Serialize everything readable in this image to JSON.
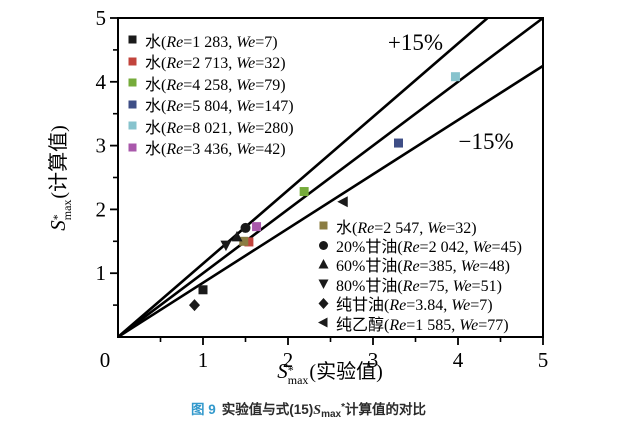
{
  "caption": {
    "fig_label": "图 9",
    "fig_label_color": "#3399cc",
    "pre": "实验值与式(15)",
    "sym": "S",
    "sym_sub": "max",
    "sym_sup": "*",
    "post": "计算值的对比"
  },
  "chart_data": {
    "type": "scatter",
    "title": "",
    "xlabel": {
      "sym": "S",
      "sup": "*",
      "sub": "max",
      "text": "(实验值)"
    },
    "ylabel": {
      "sym": "S",
      "sup": "*",
      "sub": "max",
      "text": "(计算值)"
    },
    "xlim": [
      0,
      5
    ],
    "ylim": [
      0,
      5
    ],
    "x_major_ticks": [
      0,
      1,
      2,
      3,
      4,
      5
    ],
    "y_major_ticks": [
      0,
      1,
      2,
      3,
      4,
      5
    ],
    "minor_tick_step": 0.5,
    "grid": false,
    "axis_color": "#000000",
    "reference_lines": [
      {
        "slope": 1.15,
        "label": "+15%",
        "label_x": 3.5,
        "label_y": 4.62
      },
      {
        "slope": 1.0,
        "label": "",
        "label_x": null,
        "label_y": null
      },
      {
        "slope": 0.85,
        "label": "−15%",
        "label_x": 4.33,
        "label_y": 3.07
      }
    ],
    "series": [
      {
        "label": "水(Re=1 283, We=7)",
        "marker": "square",
        "color": "#1a1a1a",
        "legend_group": 1,
        "points": [
          [
            1.0,
            0.74
          ]
        ]
      },
      {
        "label": "水(Re=2 713, We=32)",
        "marker": "square",
        "color": "#c2443c",
        "legend_group": 1,
        "points": [
          [
            1.54,
            1.49
          ]
        ]
      },
      {
        "label": "水(Re=4 258, We=79)",
        "marker": "square",
        "color": "#76ab3b",
        "legend_group": 1,
        "points": [
          [
            2.19,
            2.28
          ]
        ]
      },
      {
        "label": "水(Re=5 804, We=147)",
        "marker": "square",
        "color": "#3e4e86",
        "legend_group": 1,
        "points": [
          [
            3.3,
            3.04
          ]
        ]
      },
      {
        "label": "水(Re=8 021, We=280)",
        "marker": "square",
        "color": "#87c3cd",
        "legend_group": 1,
        "points": [
          [
            3.97,
            4.08
          ]
        ]
      },
      {
        "label": "水(Re=3 436, We=42)",
        "marker": "square",
        "color": "#a958ab",
        "legend_group": 1,
        "points": [
          [
            1.63,
            1.73
          ]
        ]
      },
      {
        "label": "水(Re=2 547, We=32)",
        "marker": "square",
        "color": "#8b7d42",
        "legend_group": 2,
        "points": [
          [
            1.48,
            1.5
          ]
        ]
      },
      {
        "label": "20%甘油(Re=2 042, We=45)",
        "marker": "circle",
        "color": "#1a1a1a",
        "legend_group": 2,
        "points": [
          [
            1.5,
            1.71
          ]
        ]
      },
      {
        "label": "60%甘油(Re=385, We=48)",
        "marker": "triangle-up",
        "color": "#1a1a1a",
        "legend_group": 2,
        "points": [
          [
            1.4,
            1.57
          ]
        ]
      },
      {
        "label": "80%甘油(Re=75, We=51)",
        "marker": "triangle-down",
        "color": "#1a1a1a",
        "legend_group": 2,
        "points": [
          [
            1.27,
            1.44
          ]
        ]
      },
      {
        "label": "纯甘油(Re=3.84, We=7)",
        "marker": "diamond",
        "color": "#1a1a1a",
        "legend_group": 2,
        "points": [
          [
            0.9,
            0.5
          ]
        ]
      },
      {
        "label": "纯乙醇(Re=1 585, We=77)",
        "marker": "triangle-left",
        "color": "#1a1a1a",
        "legend_group": 2,
        "points": [
          [
            2.65,
            2.12
          ]
        ]
      }
    ]
  }
}
